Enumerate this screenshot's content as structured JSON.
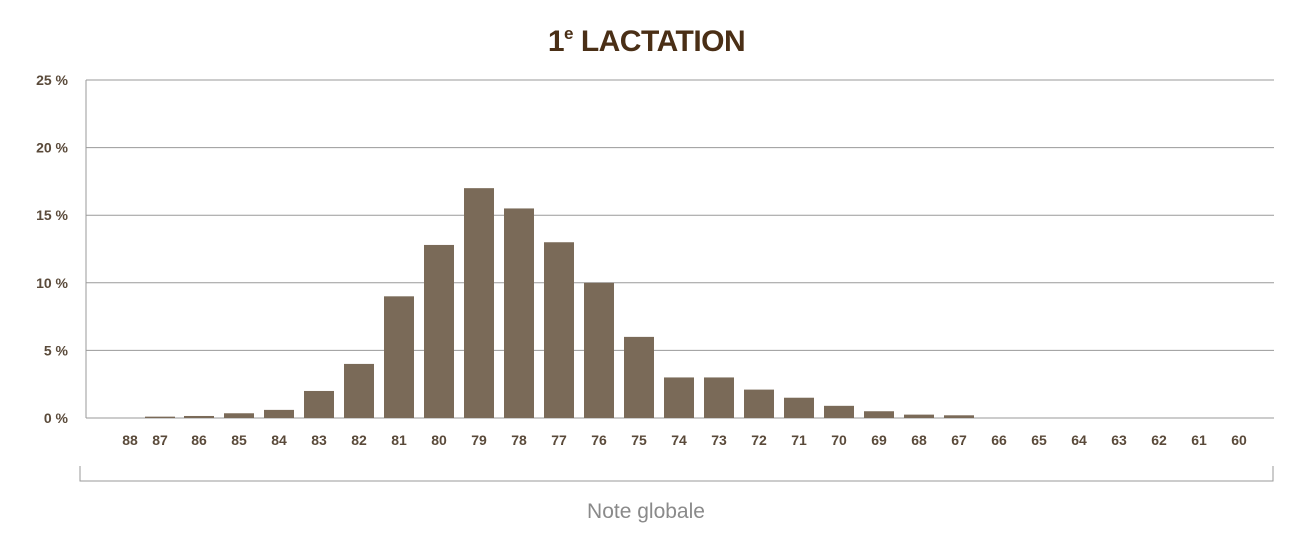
{
  "chart_data": {
    "type": "bar",
    "title_main": "1",
    "title_sup": "e",
    "title_rest": " LACTATION",
    "xlabel": "Note globale",
    "ylabel": "",
    "y_tick_labels": [
      "0 %",
      "5 %",
      "10 %",
      "15 %",
      "20 %",
      "25 %"
    ],
    "ylim": [
      0,
      25
    ],
    "grid": true,
    "categories": [
      "88",
      "87",
      "86",
      "85",
      "84",
      "83",
      "82",
      "81",
      "80",
      "79",
      "78",
      "77",
      "76",
      "75",
      "74",
      "73",
      "72",
      "71",
      "70",
      "69",
      "68",
      "67",
      "66",
      "65",
      "64",
      "63",
      "62",
      "61",
      "60"
    ],
    "values": [
      0,
      0.1,
      0.15,
      0.35,
      0.6,
      2.0,
      4.0,
      9.0,
      12.8,
      17.0,
      15.5,
      13.0,
      10.0,
      6.0,
      3.0,
      3.0,
      2.1,
      1.5,
      0.9,
      0.5,
      0.25,
      0.2,
      0,
      0,
      0,
      0,
      0,
      0,
      0
    ],
    "bar_color": "#7a6a58",
    "grid_color": "#9a9a9a"
  }
}
